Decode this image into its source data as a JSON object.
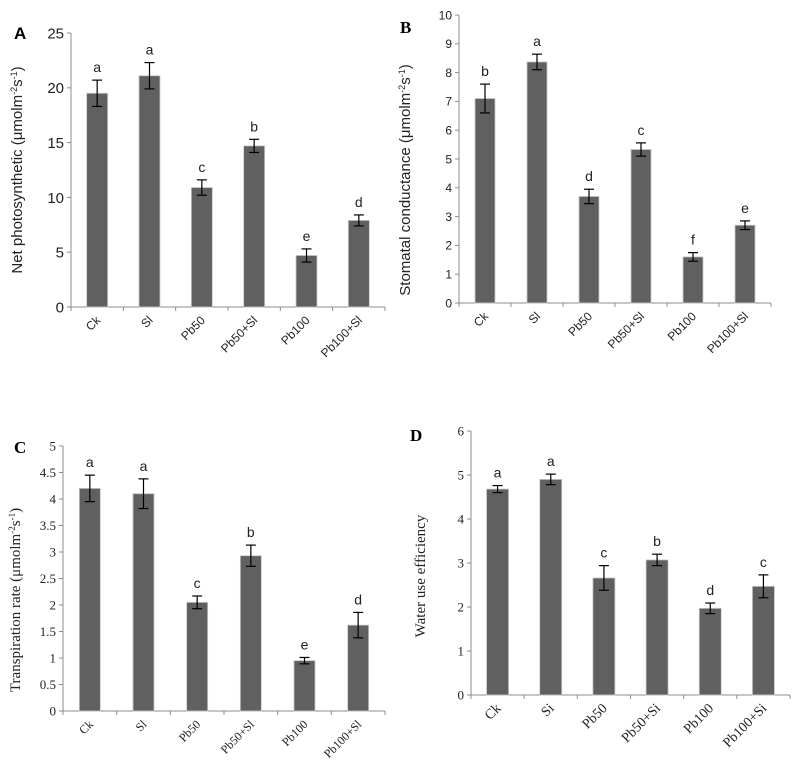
{
  "chart_data": [
    {
      "type": "bar",
      "panel": "A",
      "ylabel": "Net photosynthetic (μmolm-2s-1)",
      "ylabel_main": "Net photosynthetic (μmolm",
      "ylabel_sup1": "-2",
      "ylabel_mid": "s",
      "ylabel_sup2": "-1",
      "ylabel_end": ")",
      "categories": [
        "Ck",
        "Sl",
        "Pb50",
        "Pb50+Sl",
        "Pb100",
        "Pb100+Sl"
      ],
      "values": [
        19.5,
        21.1,
        10.9,
        14.7,
        4.7,
        7.9
      ],
      "errors": [
        1.2,
        1.2,
        0.7,
        0.6,
        0.6,
        0.5
      ],
      "letters": [
        "a",
        "a",
        "c",
        "b",
        "e",
        "d"
      ],
      "ylim": [
        0,
        25
      ],
      "yticks": [
        "0",
        "5",
        "10",
        "15",
        "20",
        "25"
      ],
      "grid": false
    },
    {
      "type": "bar",
      "panel": "B",
      "ylabel": "Stomatal conductance (μmolm-2s-1)",
      "ylabel_main": "Stomatal conductance (μmolm",
      "ylabel_sup1": "-2",
      "ylabel_mid": "s",
      "ylabel_sup2": "-1",
      "ylabel_end": ")",
      "categories": [
        "Ck",
        "Sl",
        "Pb50",
        "Pb50+Sl",
        "Pb100",
        "Pb100+Sl"
      ],
      "values": [
        7.1,
        8.37,
        3.7,
        5.33,
        1.6,
        2.7
      ],
      "errors": [
        0.5,
        0.27,
        0.25,
        0.23,
        0.15,
        0.15
      ],
      "letters": [
        "b",
        "a",
        "d",
        "c",
        "f",
        "e"
      ],
      "ylim": [
        0,
        10
      ],
      "yticks": [
        "0",
        "1",
        "2",
        "3",
        "4",
        "5",
        "6",
        "7",
        "8",
        "9",
        "10"
      ],
      "grid": false
    },
    {
      "type": "bar",
      "panel": "C",
      "ylabel": "Transpiration rate (μmolm-2s-1)",
      "ylabel_main": "Transpiration rate (μmolm",
      "ylabel_sup1": "-2",
      "ylabel_mid": "s",
      "ylabel_sup2": "-1",
      "ylabel_end": ")",
      "categories": [
        "Ck",
        "Sl",
        "Pb50",
        "Pb50+Sl",
        "Pb100",
        "Pb100+Sl"
      ],
      "values": [
        4.2,
        4.1,
        2.05,
        2.93,
        0.95,
        1.62
      ],
      "errors": [
        0.25,
        0.28,
        0.12,
        0.2,
        0.06,
        0.24
      ],
      "letters": [
        "a",
        "a",
        "c",
        "b",
        "e",
        "d"
      ],
      "ylim": [
        0,
        5
      ],
      "yticks": [
        "0",
        "0.5",
        "1",
        "1.5",
        "2",
        "2.5",
        "3",
        "3.5",
        "4",
        "4.5",
        "5"
      ],
      "grid": false
    },
    {
      "type": "bar",
      "panel": "D",
      "ylabel": "Water use efficiency",
      "ylabel_main": "Water use efficiency",
      "ylabel_sup1": "",
      "ylabel_mid": "",
      "ylabel_sup2": "",
      "ylabel_end": "",
      "categories": [
        "Ck",
        "Si",
        "Pb50",
        "Pb50+Si",
        "Pb100",
        "Pb100+Si"
      ],
      "values": [
        4.68,
        4.9,
        2.66,
        3.07,
        1.97,
        2.47
      ],
      "errors": [
        0.08,
        0.12,
        0.28,
        0.13,
        0.12,
        0.26
      ],
      "letters": [
        "a",
        "a",
        "c",
        "b",
        "d",
        "c"
      ],
      "ylim": [
        0,
        6
      ],
      "yticks": [
        "0",
        "1",
        "2",
        "3",
        "4",
        "5",
        "6"
      ],
      "grid": false
    }
  ]
}
